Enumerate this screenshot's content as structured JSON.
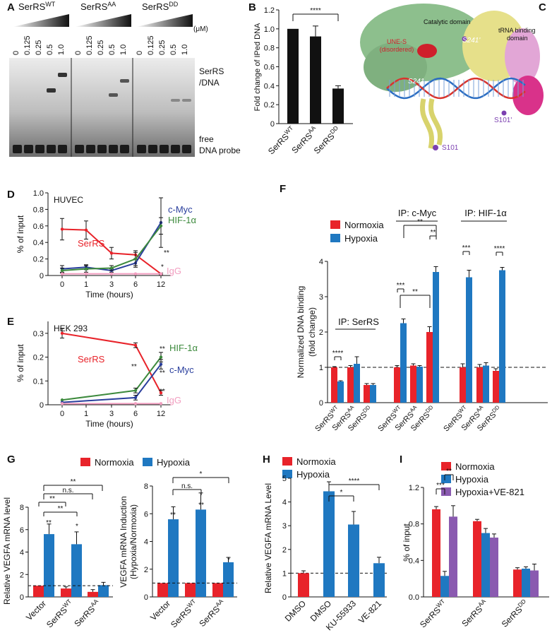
{
  "panels": {
    "A": {
      "letter": "A",
      "groups": [
        "SerRS<sup>WT</sup>",
        "SerRS<sup>AA</sup>",
        "SerRS<sup>DD</sup>"
      ],
      "concentrations": [
        "0",
        "0.125",
        "0.25",
        "0.5",
        "1.0"
      ],
      "unit": "(μM)",
      "band_label_top": "SerRS\n/DNA",
      "band_label_bottom": "free\nDNA probe"
    },
    "C": {
      "letter": "C",
      "labels": [
        "Catalytic domain",
        "tRNA binding domain",
        "UNE-S (disordered)",
        "S241'",
        "S241",
        "S101'",
        "S101"
      ]
    }
  },
  "colors": {
    "normoxia": "#e8232a",
    "hypoxia": "#1f78c1",
    "ve821": "#8a5ab0",
    "serrs_line": "#e8232a",
    "cmyc_line": "#2a3f9d",
    "hif_line": "#3d8a3d",
    "igg_line": "#f29ec0",
    "black": "#111111"
  },
  "chart_data": [
    {
      "panel": "B",
      "type": "bar",
      "categories": [
        "SerRS^WT",
        "SerRS^AA",
        "SerRS^DD"
      ],
      "values": [
        1.0,
        0.92,
        0.37
      ],
      "errors": [
        0.0,
        0.11,
        0.03
      ],
      "ylabel": "Fold change of IPed DNA",
      "ylim": [
        0,
        1.2
      ],
      "yticks": [
        "0",
        "0.2",
        "0.4",
        "0.6",
        "0.8",
        "1.0",
        "1.2"
      ],
      "annotations": [
        "****"
      ]
    },
    {
      "panel": "D",
      "type": "line",
      "title": "HUVEC",
      "x": [
        0,
        1,
        3,
        6,
        12
      ],
      "xticks": [
        "0",
        "1",
        "3",
        "6",
        "12"
      ],
      "xlabel": "Time (hours)",
      "ylabel": "% of input",
      "ylim": [
        0,
        1.0
      ],
      "yticks": [
        "0",
        "0.2",
        "0.4",
        "0.6",
        "0.8",
        "1.0"
      ],
      "series": [
        {
          "name": "SerRS",
          "values": [
            0.56,
            0.55,
            0.27,
            0.25,
            0.02
          ],
          "errors": [
            0.13,
            0.11,
            0.07,
            0.05,
            0.01
          ]
        },
        {
          "name": "c-Myc",
          "values": [
            0.08,
            0.1,
            0.06,
            0.15,
            0.64
          ],
          "errors": [
            0.04,
            0.03,
            0.02,
            0.05,
            0.3
          ]
        },
        {
          "name": "HIF-1α",
          "values": [
            0.06,
            0.08,
            0.09,
            0.2,
            0.6
          ],
          "errors": [
            0.03,
            0.04,
            0.03,
            0.08,
            0.1
          ]
        },
        {
          "name": "IgG",
          "values": [
            0.02,
            0.02,
            0.02,
            0.02,
            0.02
          ],
          "errors": [
            0,
            0,
            0,
            0,
            0
          ]
        }
      ],
      "annotations": [
        "**",
        "*"
      ]
    },
    {
      "panel": "E",
      "type": "line",
      "title": "HEK 293",
      "x": [
        0,
        1,
        3,
        6,
        12
      ],
      "xticks": [
        "0",
        "1",
        "3",
        "6",
        "12"
      ],
      "xlabel": "Time (hours)",
      "ylabel": "% of input",
      "ylim": [
        0,
        0.35
      ],
      "yticks": [
        "0",
        "0.1",
        "0.2",
        "0.3"
      ],
      "series": [
        {
          "name": "SerRS",
          "values": [
            0.3,
            null,
            null,
            0.25,
            0.05
          ],
          "errors": [
            0.02,
            null,
            null,
            0.01,
            0.01
          ]
        },
        {
          "name": "HIF-1α",
          "values": [
            0.02,
            null,
            null,
            0.06,
            0.2
          ],
          "errors": [
            0,
            null,
            null,
            0.01,
            0.02
          ]
        },
        {
          "name": "c-Myc",
          "values": [
            0.01,
            null,
            null,
            0.03,
            0.17
          ],
          "errors": [
            0,
            null,
            null,
            0.01,
            0.02
          ]
        },
        {
          "name": "IgG",
          "values": [
            0.005,
            null,
            null,
            0.005,
            0.005
          ],
          "errors": [
            0,
            null,
            null,
            0,
            0
          ]
        }
      ],
      "annotations": [
        "**",
        "**",
        "**",
        "**"
      ]
    },
    {
      "panel": "F",
      "type": "bar",
      "ylabel": "Normalized DNA binding\n(fold change)",
      "ylim": [
        0,
        4
      ],
      "yticks": [
        "0",
        "1",
        "2",
        "3",
        "4"
      ],
      "legend": [
        "Normoxia",
        "Hypoxia"
      ],
      "group_titles": [
        "IP: SerRS",
        "IP: c-Myc",
        "IP: HIF-1α"
      ],
      "categories": [
        "SerRS^WT",
        "SerRS^AA",
        "SerRS^DD",
        "SerRS^WT",
        "SerRS^AA",
        "SerRS^DD",
        "SerRS^WT",
        "SerRS^AA",
        "SerRS^DD"
      ],
      "series": [
        {
          "name": "Normoxia",
          "values": [
            1.0,
            1.0,
            0.5,
            1.0,
            1.05,
            2.0,
            1.0,
            1.0,
            0.9
          ],
          "errors": [
            0.02,
            0.05,
            0.04,
            0.05,
            0.05,
            0.15,
            0.1,
            0.08,
            0.06
          ]
        },
        {
          "name": "Hypoxia",
          "values": [
            0.6,
            1.1,
            0.5,
            2.25,
            1.02,
            3.7,
            3.55,
            1.05,
            3.75
          ],
          "errors": [
            0.02,
            0.2,
            0.04,
            0.12,
            0.03,
            0.15,
            0.2,
            0.08,
            0.08
          ]
        }
      ],
      "annotations": [
        "****",
        "***",
        "**",
        "**",
        "**",
        "***",
        "****"
      ]
    },
    {
      "panel": "G1",
      "type": "bar",
      "ylabel": "Relative VEGFA mRNA level",
      "ylim": [
        0,
        8
      ],
      "yticks": [
        "0",
        "2",
        "4",
        "6",
        "8"
      ],
      "legend": [
        "Normoxia",
        "Hypoxia"
      ],
      "categories": [
        "Vector",
        "SerRS^WT",
        "SerRS^AA"
      ],
      "series": [
        {
          "name": "Normoxia",
          "values": [
            1.0,
            0.75,
            0.45
          ],
          "errors": [
            0,
            0.15,
            0.2
          ]
        },
        {
          "name": "Hypoxia",
          "values": [
            5.6,
            4.7,
            1.05
          ],
          "errors": [
            0.9,
            1.1,
            0.25
          ]
        }
      ],
      "annotations": [
        "**",
        "*",
        "**",
        "**",
        "n.s.",
        "**"
      ]
    },
    {
      "panel": "G2",
      "type": "bar",
      "ylabel": "VEGFA mRNA Induction\n(Hypoxia/Normoxia)",
      "ylim": [
        0,
        8
      ],
      "yticks": [
        "0",
        "2",
        "4",
        "6",
        "8"
      ],
      "categories": [
        "Vector",
        "SerRS^WT",
        "SerRS^AA"
      ],
      "series": [
        {
          "name": "Normoxia",
          "values": [
            1.0,
            1.0,
            1.0
          ],
          "errors": [
            0,
            0,
            0
          ]
        },
        {
          "name": "Hypoxia",
          "values": [
            5.6,
            6.3,
            2.5
          ],
          "errors": [
            0.9,
            1.2,
            0.35
          ]
        }
      ],
      "annotations": [
        "**",
        "**",
        "*",
        "n.s.",
        "*"
      ]
    },
    {
      "panel": "H",
      "type": "bar",
      "ylabel": "Relative VEGFA mRNA Level",
      "ylim": [
        0,
        5
      ],
      "yticks": [
        "0",
        "1",
        "2",
        "3",
        "4",
        "5"
      ],
      "legend": [
        "Normoxia",
        "Hypoxia"
      ],
      "categories": [
        "DMSO",
        "DMSO",
        "KU-55933",
        "VE-821"
      ],
      "values": [
        1.0,
        4.45,
        3.05,
        1.42
      ],
      "errors": [
        0.1,
        0.4,
        0.55,
        0.25
      ],
      "colors_by_bar": [
        "normoxia",
        "hypoxia",
        "hypoxia",
        "hypoxia"
      ],
      "annotations": [
        "*",
        "****"
      ]
    },
    {
      "panel": "I",
      "type": "bar",
      "ylabel": "% of input",
      "ylim": [
        0,
        1.2
      ],
      "yticks": [
        "0.0",
        "0.4",
        "0.8",
        "1.2"
      ],
      "legend": [
        "Normoxia",
        "Hypoxia",
        "Hypoxia+VE-821"
      ],
      "categories": [
        "SerRS^WT",
        "SerRS^AA",
        "SerRS^DD"
      ],
      "series": [
        {
          "name": "Normoxia",
          "values": [
            0.96,
            0.83,
            0.3
          ],
          "errors": [
            0.03,
            0.02,
            0.02
          ]
        },
        {
          "name": "Hypoxia",
          "values": [
            0.23,
            0.7,
            0.31
          ],
          "errors": [
            0.05,
            0.05,
            0.02
          ]
        },
        {
          "name": "Hypoxia+VE-821",
          "values": [
            0.88,
            0.65,
            0.29
          ],
          "errors": [
            0.12,
            0.04,
            0.07
          ]
        }
      ],
      "annotations": [
        "***",
        "**"
      ]
    }
  ]
}
